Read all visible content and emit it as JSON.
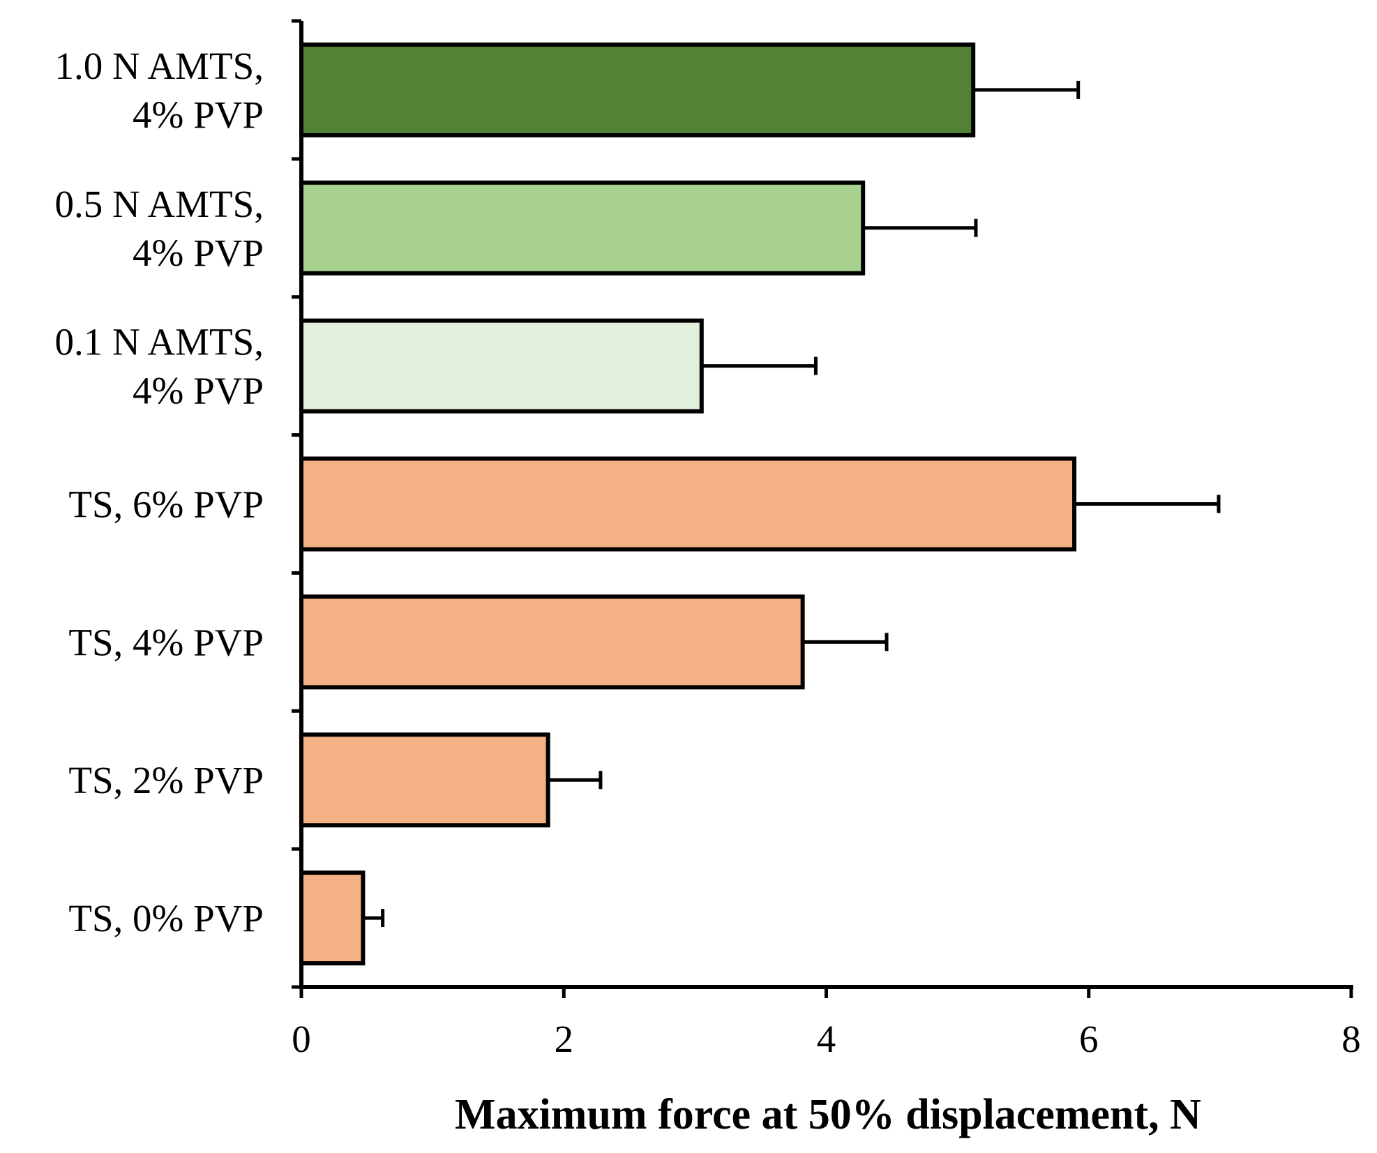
{
  "chart_data": {
    "type": "bar",
    "orientation": "horizontal",
    "title": "",
    "xlabel": "Maximum force at 50% displacement, N",
    "ylabel": "",
    "xlim": [
      0,
      8
    ],
    "xticks": [
      0,
      2,
      4,
      6,
      8
    ],
    "grid": false,
    "legend": "none",
    "bars": [
      {
        "label_lines": [
          "1.0 N AMTS,",
          "4% PVP"
        ],
        "value": 5.12,
        "error": 0.8,
        "color": "#538135"
      },
      {
        "label_lines": [
          "0.5 N AMTS,",
          "4% PVP"
        ],
        "value": 4.28,
        "error": 0.86,
        "color": "#A9D18E"
      },
      {
        "label_lines": [
          "0.1 N AMTS,",
          "4% PVP"
        ],
        "value": 3.05,
        "error": 0.87,
        "color": "#E2EFDA"
      },
      {
        "label_lines": [
          "TS, 6% PVP"
        ],
        "value": 5.89,
        "error": 1.1,
        "color": "#F4B183"
      },
      {
        "label_lines": [
          "TS, 4% PVP"
        ],
        "value": 3.82,
        "error": 0.64,
        "color": "#F4B183"
      },
      {
        "label_lines": [
          "TS, 2% PVP"
        ],
        "value": 1.88,
        "error": 0.4,
        "color": "#F4B183"
      },
      {
        "label_lines": [
          "TS, 0% PVP"
        ],
        "value": 0.47,
        "error": 0.15,
        "color": "#F4B183"
      }
    ]
  }
}
